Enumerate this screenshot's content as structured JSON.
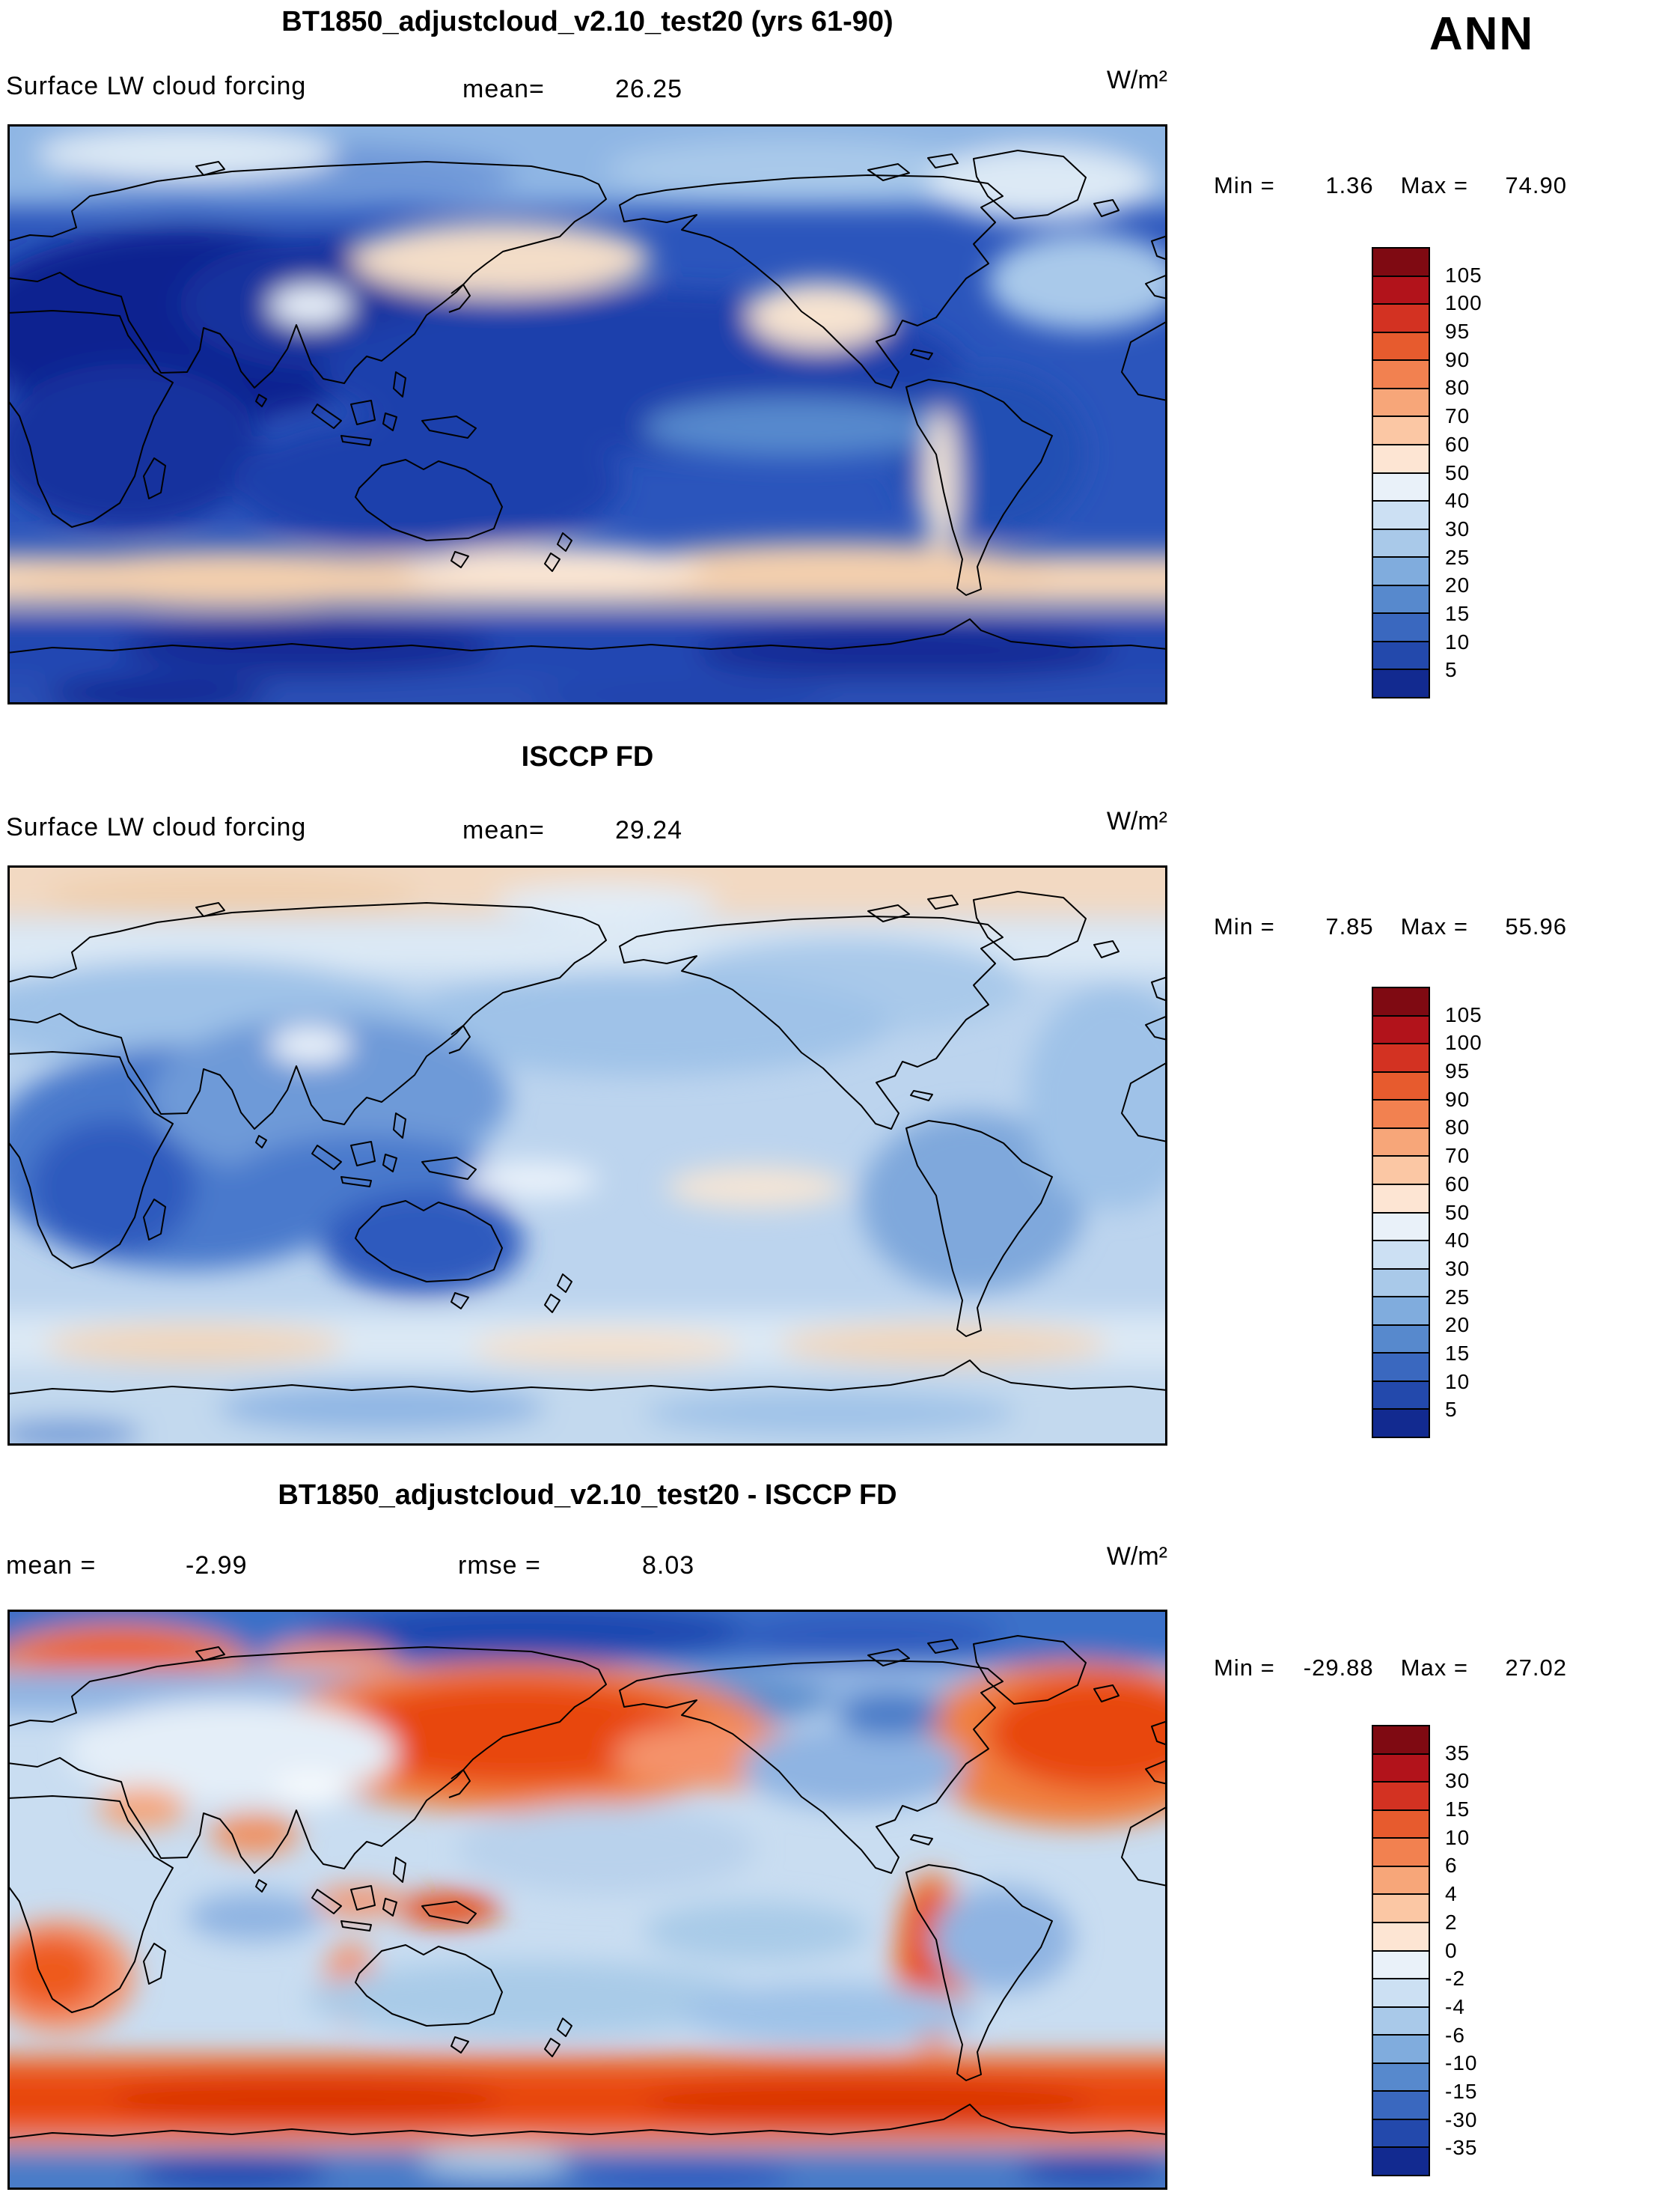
{
  "season_label": "ANN",
  "panels": [
    {
      "title": "BT1850_adjustcloud_v2.10_test20 (yrs 61-90)",
      "variable": "Surface LW cloud forcing",
      "mean_label": "mean=",
      "mean_value": "26.25",
      "units": "W/m²",
      "min_label": "Min =",
      "min_value": "1.36",
      "max_label": "Max =",
      "max_value": "74.90",
      "colorbar": {
        "labels": [
          "105",
          "100",
          "95",
          "90",
          "80",
          "70",
          "60",
          "50",
          "40",
          "30",
          "25",
          "20",
          "15",
          "10",
          "5"
        ],
        "colors": [
          "#7f0a12",
          "#b2131b",
          "#d33222",
          "#e75b2e",
          "#f28150",
          "#f7a679",
          "#fbc7a4",
          "#fde5d3",
          "#e9f1f9",
          "#cce0f3",
          "#a9c9e9",
          "#80acdd",
          "#5789cd",
          "#3a68bf",
          "#2349ac",
          "#122a90"
        ]
      }
    },
    {
      "title": "ISCCP FD",
      "variable": "Surface LW cloud forcing",
      "mean_label": "mean=",
      "mean_value": "29.24",
      "units": "W/m²",
      "min_label": "Min =",
      "min_value": "7.85",
      "max_label": "Max =",
      "max_value": "55.96",
      "colorbar": {
        "labels": [
          "105",
          "100",
          "95",
          "90",
          "80",
          "70",
          "60",
          "50",
          "40",
          "30",
          "25",
          "20",
          "15",
          "10",
          "5"
        ],
        "colors": [
          "#7f0a12",
          "#b2131b",
          "#d33222",
          "#e75b2e",
          "#f28150",
          "#f7a679",
          "#fbc7a4",
          "#fde5d3",
          "#e9f1f9",
          "#cce0f3",
          "#a9c9e9",
          "#80acdd",
          "#5789cd",
          "#3a68bf",
          "#2349ac",
          "#122a90"
        ]
      }
    },
    {
      "title": "BT1850_adjustcloud_v2.10_test20 - ISCCP FD",
      "mean_label": "mean =",
      "mean_value": "-2.99",
      "rmse_label": "rmse =",
      "rmse_value": "8.03",
      "units": "W/m²",
      "min_label": "Min =",
      "min_value": "-29.88",
      "max_label": "Max =",
      "max_value": "27.02",
      "colorbar": {
        "labels": [
          "35",
          "30",
          "15",
          "10",
          "6",
          "4",
          "2",
          "0",
          "-2",
          "-4",
          "-6",
          "-10",
          "-15",
          "-30",
          "-35"
        ],
        "colors": [
          "#7f0a12",
          "#b2131b",
          "#d33222",
          "#e75b2e",
          "#f28150",
          "#f7a679",
          "#fbc7a4",
          "#fde5d3",
          "#e9f1f9",
          "#cce0f3",
          "#a9c9e9",
          "#80acdd",
          "#5789cd",
          "#3a68bf",
          "#2349ac",
          "#122a90"
        ]
      }
    }
  ],
  "chart_data": [
    {
      "type": "heatmap",
      "subtype": "filled-contour-global-map",
      "title": "BT1850_adjustcloud_v2.10_test20 (yrs 61-90)",
      "variable": "Surface LW cloud forcing",
      "season": "ANN",
      "units": "W/m²",
      "mean": 26.25,
      "min": 1.36,
      "max": 74.9,
      "contour_levels": [
        5,
        10,
        15,
        20,
        25,
        30,
        40,
        50,
        60,
        70,
        80,
        90,
        95,
        100,
        105
      ],
      "palette_top_to_bottom": [
        "#7f0a12",
        "#b2131b",
        "#d33222",
        "#e75b2e",
        "#f28150",
        "#f7a679",
        "#fbc7a4",
        "#fde5d3",
        "#e9f1f9",
        "#cce0f3",
        "#a9c9e9",
        "#80acdd",
        "#5789cd",
        "#3a68bf",
        "#2349ac",
        "#122a90"
      ],
      "projection": "equirectangular",
      "lon_range": [
        0,
        360
      ],
      "lat_range": [
        -90,
        90
      ],
      "legend_position": "right",
      "notes": "Mostly 10-30 W/m2 (blues) over oceans and continents; darkest minima (<10) over North Africa, Arabia, India and central Pacific subtropics; pale peach maxima (50-60) in a zonal band near 45-55S and patches in the North Pacific and around Mexico"
    },
    {
      "type": "heatmap",
      "subtype": "filled-contour-global-map",
      "title": "ISCCP FD",
      "variable": "Surface LW cloud forcing",
      "season": "ANN",
      "units": "W/m²",
      "mean": 29.24,
      "min": 7.85,
      "max": 55.96,
      "contour_levels": [
        5,
        10,
        15,
        20,
        25,
        30,
        40,
        50,
        60,
        70,
        80,
        90,
        95,
        100,
        105
      ],
      "palette_top_to_bottom": [
        "#7f0a12",
        "#b2131b",
        "#d33222",
        "#e75b2e",
        "#f28150",
        "#f7a679",
        "#fbc7a4",
        "#fde5d3",
        "#e9f1f9",
        "#cce0f3",
        "#a9c9e9",
        "#80acdd",
        "#5789cd",
        "#3a68bf",
        "#2349ac",
        "#122a90"
      ],
      "projection": "equirectangular",
      "lon_range": [
        0,
        360
      ],
      "lat_range": [
        -90,
        90
      ],
      "legend_position": "right",
      "notes": "Smoother field of light blues (30-50); stronger blues (15-25) over Africa, south Asia, Australia and subtropical oceans; pale peach (50+) along Arctic rim and around 55-65S"
    },
    {
      "type": "heatmap",
      "subtype": "filled-contour-global-map-difference",
      "title": "BT1850_adjustcloud_v2.10_test20 - ISCCP FD",
      "season": "ANN",
      "units": "W/m²",
      "mean": -2.99,
      "rmse": 8.03,
      "min": -29.88,
      "max": 27.02,
      "contour_levels": [
        -35,
        -30,
        -15,
        -10,
        -6,
        -4,
        -2,
        0,
        2,
        4,
        6,
        10,
        15,
        30,
        35
      ],
      "palette_top_to_bottom": [
        "#7f0a12",
        "#b2131b",
        "#d33222",
        "#e75b2e",
        "#f28150",
        "#f7a679",
        "#fbc7a4",
        "#fde5d3",
        "#e9f1f9",
        "#cce0f3",
        "#a9c9e9",
        "#80acdd",
        "#5789cd",
        "#3a68bf",
        "#2349ac",
        "#122a90"
      ],
      "projection": "equirectangular",
      "lon_range": [
        0,
        360
      ],
      "lat_range": [
        -90,
        90
      ],
      "legend_position": "right",
      "notes": "Strong positive (red, +10 to +30) zonal band near 50-65S, North Pacific, North Atlantic and eastern-boundary stratus coasts (Peru, Namibia, W Australia); negative (blue) over Arctic, Antarctica and parts of the tropics/midlatitude oceans"
    }
  ]
}
